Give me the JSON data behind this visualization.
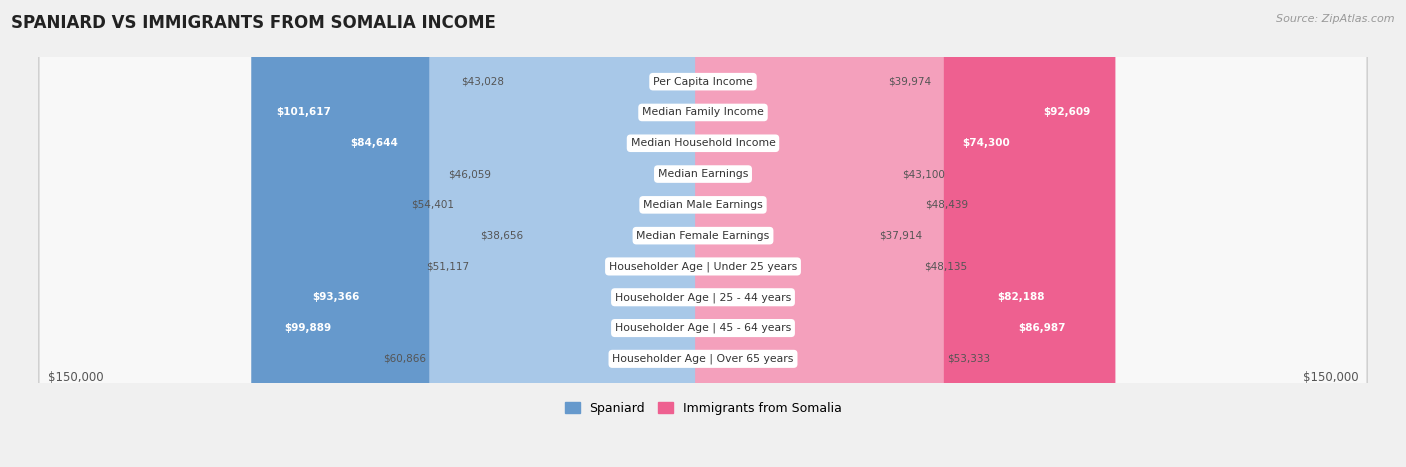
{
  "title": "SPANIARD VS IMMIGRANTS FROM SOMALIA INCOME",
  "source": "Source: ZipAtlas.com",
  "categories": [
    "Per Capita Income",
    "Median Family Income",
    "Median Household Income",
    "Median Earnings",
    "Median Male Earnings",
    "Median Female Earnings",
    "Householder Age | Under 25 years",
    "Householder Age | 25 - 44 years",
    "Householder Age | 45 - 64 years",
    "Householder Age | Over 65 years"
  ],
  "spaniard_values": [
    43028,
    101617,
    84644,
    46059,
    54401,
    38656,
    51117,
    93366,
    99889,
    60866
  ],
  "somalia_values": [
    39974,
    92609,
    74300,
    43100,
    48439,
    37914,
    48135,
    82188,
    86987,
    53333
  ],
  "spaniard_labels": [
    "$43,028",
    "$101,617",
    "$84,644",
    "$46,059",
    "$54,401",
    "$38,656",
    "$51,117",
    "$93,366",
    "$99,889",
    "$60,866"
  ],
  "somalia_labels": [
    "$39,974",
    "$92,609",
    "$74,300",
    "$43,100",
    "$48,439",
    "$37,914",
    "$48,135",
    "$82,188",
    "$86,987",
    "$53,333"
  ],
  "spaniard_color_light": "#a8c8e8",
  "spaniard_color_dark": "#6699cc",
  "somalia_color_light": "#f4a0bc",
  "somalia_color_dark": "#ee6090",
  "max_value": 150000,
  "background_color": "#f0f0f0",
  "row_bg_color": "#e8e8e8",
  "bar_bg_color": "#ffffff",
  "legend_spaniard": "Spaniard",
  "legend_somalia": "Immigrants from Somalia",
  "xlabel_left": "$150,000",
  "xlabel_right": "$150,000",
  "sp_inside_threshold": 65000,
  "so_inside_threshold": 65000
}
